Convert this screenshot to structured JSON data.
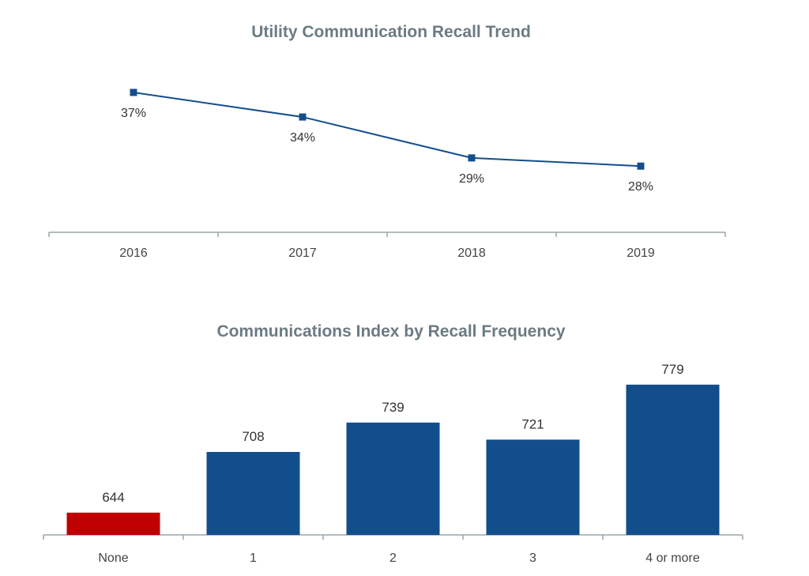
{
  "chart_data": [
    {
      "type": "line",
      "title": "Utility Communication Recall Trend",
      "categories": [
        "2016",
        "2017",
        "2018",
        "2019"
      ],
      "series": [
        {
          "values": [
            37,
            34,
            29,
            28
          ],
          "labels": [
            "37%",
            "34%",
            "29%",
            "28%"
          ],
          "color": "#134e8c"
        }
      ],
      "grid": false
    },
    {
      "type": "bar",
      "title": "Communications Index by Recall Frequency",
      "categories": [
        "None",
        "1",
        "2",
        "3",
        "4 or more"
      ],
      "values": [
        644,
        708,
        739,
        721,
        779
      ],
      "labels": [
        "644",
        "708",
        "739",
        "721",
        "779"
      ],
      "colors": [
        "#c00000",
        "#134e8c",
        "#134e8c",
        "#134e8c",
        "#134e8c"
      ],
      "grid": false
    }
  ]
}
